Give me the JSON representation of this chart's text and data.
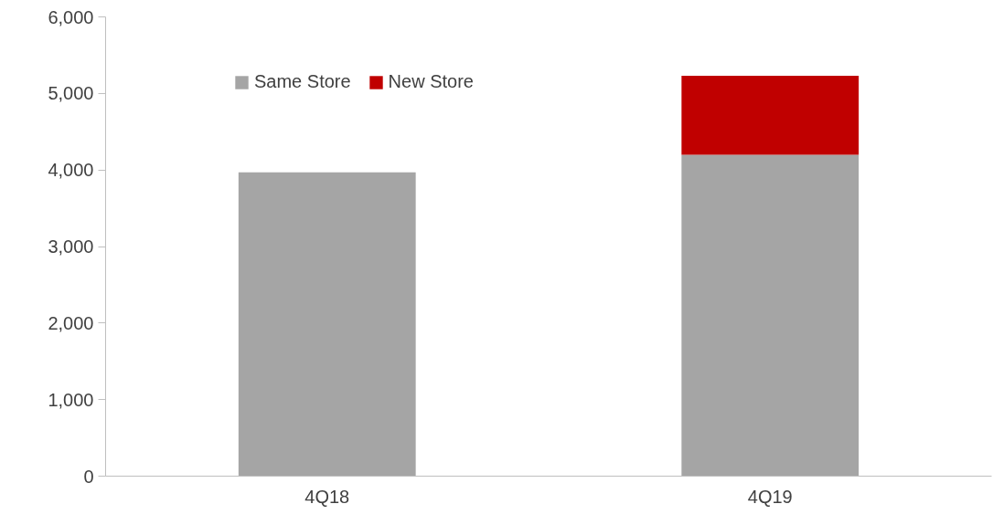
{
  "chart_data": {
    "type": "bar",
    "stacked": true,
    "categories": [
      "4Q18",
      "4Q19"
    ],
    "series": [
      {
        "name": "Same Store",
        "color": "#a5a5a5",
        "values": [
          3970,
          4200
        ]
      },
      {
        "name": "New Store",
        "color": "#c00000",
        "values": [
          null,
          1030
        ]
      }
    ],
    "ylim": [
      0,
      6000
    ],
    "yticks": [
      {
        "value": 0,
        "label": "0"
      },
      {
        "value": 1000,
        "label": "1,000"
      },
      {
        "value": 2000,
        "label": "2,000"
      },
      {
        "value": 3000,
        "label": "3,000"
      },
      {
        "value": 4000,
        "label": "4,000"
      },
      {
        "value": 5000,
        "label": "5,000"
      },
      {
        "value": 6000,
        "label": "6,000"
      }
    ],
    "grid": false,
    "legend": "top left"
  }
}
